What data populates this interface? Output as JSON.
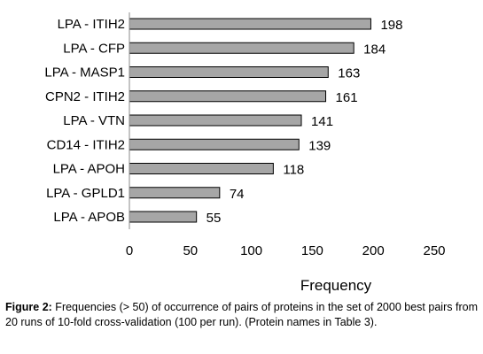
{
  "chart_data": {
    "type": "bar",
    "orientation": "horizontal",
    "categories": [
      "LPA - ITIH2",
      "LPA - CFP",
      "LPA - MASP1",
      "CPN2 - ITIH2",
      "LPA - VTN",
      "CD14 - ITIH2",
      "LPA - APOH",
      "LPA - GPLD1",
      "LPA - APOB"
    ],
    "values": [
      198,
      184,
      163,
      161,
      141,
      139,
      118,
      74,
      55
    ],
    "xlabel": "Frequency",
    "ylabel": "",
    "xlim": [
      0,
      250
    ],
    "xticks": [
      0,
      50,
      100,
      150,
      200,
      250
    ],
    "grid": false,
    "bar_color": "#a6a6a6"
  },
  "caption": {
    "figure_label": "Figure 2:",
    "text": " Frequencies (> 50) of occurrence of pairs of proteins in the set of 2000 best pairs from 20 runs of 10-fold cross-validation (100 per run).  (Protein names in Table 3)."
  }
}
